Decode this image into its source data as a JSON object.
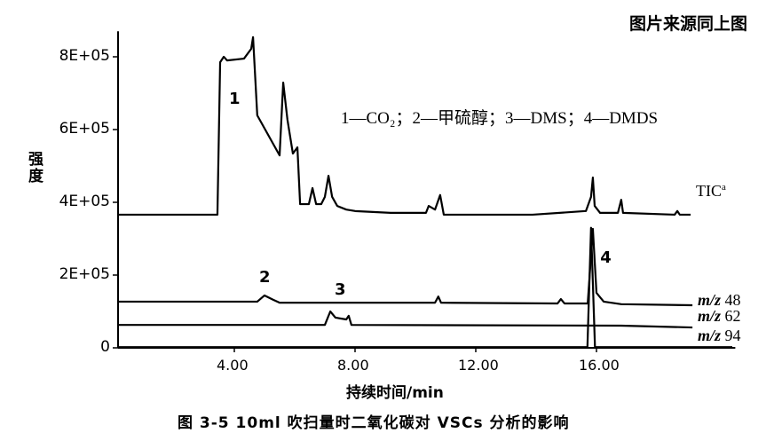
{
  "chart_data": {
    "type": "line",
    "source_note": "图片来源同上图",
    "caption": "图 3-5   10ml 吹扫量时二氧化碳对 VSCs 分析的影响",
    "xlabel": "持续时间/min",
    "ylabel": "强度",
    "xlim": [
      0,
      20.6
    ],
    "ylim": [
      0,
      870000
    ],
    "x_ticks": [
      4,
      8,
      12,
      16
    ],
    "x_tick_labels": [
      "4.00",
      "8.00",
      "12.00",
      "16.00"
    ],
    "y_ticks": [
      0,
      200000,
      400000,
      600000,
      800000
    ],
    "y_tick_labels": [
      "0",
      "2E+05",
      "4E+05",
      "6E+05",
      "8E+05"
    ],
    "grid": false,
    "legend_text": "1—CO₂；2—甲硫醇；3—DMS；4—DMDS",
    "peak_labels": [
      {
        "text": "1",
        "x": 4.0,
        "y": 680000
      },
      {
        "text": "2",
        "x": 5.0,
        "y": 190000
      },
      {
        "text": "3",
        "x": 7.5,
        "y": 155000
      },
      {
        "text": "4",
        "x": 16.3,
        "y": 245000
      }
    ],
    "series": [
      {
        "name": "TIC",
        "name_sup": "a",
        "color": "#000000",
        "x": [
          0.15,
          3.44,
          3.53,
          3.65,
          3.76,
          4.32,
          4.56,
          4.62,
          4.76,
          5.5,
          5.62,
          5.76,
          5.94,
          6.09,
          6.18,
          6.47,
          6.59,
          6.71,
          6.88,
          7.0,
          7.12,
          7.24,
          7.41,
          7.71,
          8.0,
          9.18,
          10.35,
          10.44,
          10.65,
          10.82,
          10.94,
          13.88,
          15.65,
          15.82,
          15.88,
          15.94,
          16.12,
          16.71,
          16.82,
          16.88,
          18.59,
          18.68,
          18.76,
          19.12
        ],
        "y": [
          366000,
          366000,
          785000,
          800000,
          790000,
          795000,
          822000,
          854000,
          639000,
          529000,
          729000,
          627000,
          534000,
          551000,
          395000,
          395000,
          439000,
          395000,
          395000,
          415000,
          473000,
          415000,
          390000,
          380000,
          376000,
          371000,
          371000,
          390000,
          380000,
          420000,
          366000,
          366000,
          376000,
          415000,
          468000,
          390000,
          371000,
          371000,
          407000,
          371000,
          366000,
          376000,
          366000,
          366000
        ]
      },
      {
        "name": "m/z 48",
        "color": "#000000",
        "x": [
          0.15,
          4.76,
          5.0,
          5.29,
          5.5,
          10.65,
          10.76,
          10.85,
          14.71,
          14.82,
          14.94,
          15.71,
          15.88,
          16.0,
          16.24,
          16.82,
          19.18
        ],
        "y": [
          127000,
          127000,
          144000,
          132000,
          124000,
          124000,
          141000,
          124000,
          122000,
          134000,
          122000,
          122000,
          327000,
          151000,
          127000,
          120000,
          117000
        ]
      },
      {
        "name": "m/z 62",
        "color": "#000000",
        "x": [
          0.15,
          7.0,
          7.18,
          7.35,
          7.71,
          7.79,
          7.88,
          16.82,
          19.18
        ],
        "y": [
          63000,
          63000,
          100000,
          83000,
          78000,
          88000,
          63000,
          61000,
          56000
        ]
      },
      {
        "name": "m/z 94",
        "color": "#000000",
        "x": [
          0.15,
          15.7,
          15.82,
          15.95,
          20.5
        ],
        "y": [
          2000,
          2000,
          330000,
          2000,
          2000
        ]
      }
    ]
  }
}
